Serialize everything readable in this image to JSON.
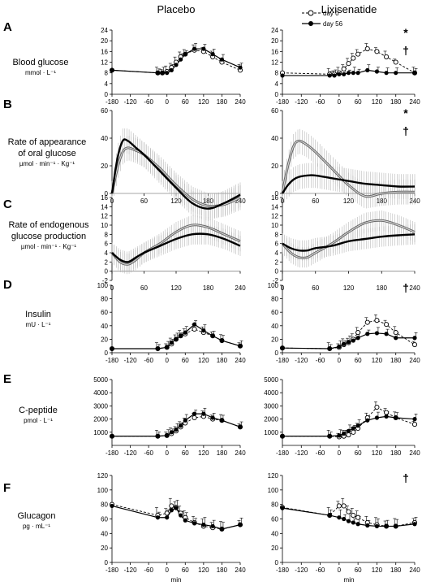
{
  "columns": [
    "Placebo",
    "Lixisenatide"
  ],
  "x_axis_label": "min",
  "legend": {
    "day0": "day 0",
    "day56": "day 56"
  },
  "colors": {
    "day0": "#000000",
    "day56": "#000000",
    "band": "#aaaaaa",
    "band_line": "#999999"
  },
  "rows": [
    {
      "letter": "A",
      "label": [
        "Blood glucose"
      ],
      "unit": "mmol · L⁻¹",
      "sig": [
        "*",
        "†"
      ]
    },
    {
      "letter": "B",
      "label": [
        "Rate of appearance",
        "of oral glucose"
      ],
      "unit": "µmol · min⁻¹ · Kg⁻¹",
      "sig": [
        "*",
        "†"
      ]
    },
    {
      "letter": "C",
      "label": [
        "Rate of endogenous",
        "glucose production"
      ],
      "unit": "µmol · min⁻¹ · Kg⁻¹",
      "sig": []
    },
    {
      "letter": "D",
      "label": [
        "Insulin"
      ],
      "unit": "mU · L⁻¹",
      "sig": [
        "†"
      ]
    },
    {
      "letter": "E",
      "label": [
        "C-peptide"
      ],
      "unit": "pmol · L⁻¹",
      "sig": []
    },
    {
      "letter": "F",
      "label": [
        "Glucagon"
      ],
      "unit": "pg · mL⁻¹",
      "sig": [
        "†"
      ]
    }
  ],
  "chart_data": [
    {
      "type": "line",
      "row": "A",
      "column": "Placebo",
      "ylim": [
        0,
        24
      ],
      "yticks": [
        0,
        4,
        8,
        12,
        16,
        20,
        24
      ],
      "xlim": [
        -180,
        240
      ],
      "xticks": [
        -180,
        -120,
        -60,
        0,
        60,
        120,
        180,
        240
      ],
      "series": [
        {
          "name": "day 0",
          "x": [
            -180,
            -30,
            -15,
            0,
            15,
            30,
            45,
            60,
            90,
            120,
            150,
            180,
            240
          ],
          "y": [
            9,
            8,
            8,
            8.5,
            10,
            12,
            14,
            15,
            16.5,
            16,
            14,
            12,
            9
          ]
        },
        {
          "name": "day 56",
          "x": [
            -180,
            -30,
            -15,
            0,
            15,
            30,
            45,
            60,
            90,
            120,
            150,
            180,
            240
          ],
          "y": [
            9,
            8,
            8,
            8,
            9,
            11,
            13,
            15,
            17,
            17,
            15,
            13,
            10
          ]
        }
      ]
    },
    {
      "type": "line",
      "row": "A",
      "column": "Lixisenatide",
      "ylim": [
        0,
        24
      ],
      "yticks": [
        0,
        4,
        8,
        12,
        16,
        20,
        24
      ],
      "xlim": [
        -180,
        240
      ],
      "xticks": [
        -180,
        -120,
        -60,
        0,
        60,
        120,
        180,
        240
      ],
      "series": [
        {
          "name": "day 0",
          "x": [
            -180,
            -30,
            -15,
            0,
            15,
            30,
            45,
            60,
            90,
            120,
            150,
            180,
            240
          ],
          "y": [
            8,
            7.5,
            7.5,
            8,
            9.5,
            11.5,
            13.5,
            15,
            17,
            16,
            14,
            12,
            8
          ]
        },
        {
          "name": "day 56",
          "x": [
            -180,
            -30,
            -15,
            0,
            15,
            30,
            45,
            60,
            90,
            120,
            150,
            180,
            240
          ],
          "y": [
            7,
            7,
            7,
            7.5,
            7.5,
            8,
            8,
            8,
            9,
            8.5,
            8,
            8,
            8
          ]
        }
      ]
    },
    {
      "type": "area",
      "row": "B",
      "column": "Placebo",
      "ylim": [
        0,
        60
      ],
      "yticks": [
        0,
        20,
        40,
        60
      ],
      "xlim": [
        0,
        240
      ],
      "xticks": [
        0,
        60,
        120,
        180,
        240
      ],
      "series": [
        {
          "name": "day 0",
          "x": [
            0,
            10,
            20,
            30,
            45,
            60,
            90,
            120,
            150,
            180,
            210,
            240
          ],
          "y": [
            0,
            18,
            30,
            33,
            31,
            28,
            18,
            6,
            -4,
            -9,
            -8,
            -3
          ]
        },
        {
          "name": "day 56",
          "x": [
            0,
            10,
            20,
            30,
            45,
            60,
            90,
            120,
            150,
            180,
            210,
            240
          ],
          "y": [
            0,
            25,
            38,
            38,
            33,
            28,
            16,
            4,
            -7,
            -11,
            -7,
            -1
          ]
        }
      ]
    },
    {
      "type": "area",
      "row": "B",
      "column": "Lixisenatide",
      "ylim": [
        0,
        60
      ],
      "yticks": [
        0,
        20,
        40,
        60
      ],
      "xlim": [
        0,
        240
      ],
      "xticks": [
        0,
        60,
        120,
        180,
        240
      ],
      "series": [
        {
          "name": "day 0",
          "x": [
            0,
            10,
            20,
            30,
            45,
            60,
            90,
            120,
            150,
            180,
            210,
            240
          ],
          "y": [
            0,
            20,
            34,
            38,
            35,
            30,
            18,
            6,
            -2,
            0,
            1,
            1
          ]
        },
        {
          "name": "day 56",
          "x": [
            0,
            10,
            20,
            30,
            45,
            60,
            90,
            120,
            150,
            180,
            210,
            240
          ],
          "y": [
            0,
            6,
            10,
            12,
            13,
            13,
            11,
            9,
            7,
            6,
            5,
            5
          ]
        }
      ]
    },
    {
      "type": "area",
      "row": "C",
      "column": "Placebo",
      "ylim": [
        -2,
        16
      ],
      "yticks": [
        -2,
        0,
        2,
        4,
        6,
        8,
        10,
        12,
        14,
        16
      ],
      "xlim": [
        0,
        240
      ],
      "xticks": [
        0,
        60,
        120,
        180,
        240
      ],
      "series": [
        {
          "name": "day 0",
          "x": [
            0,
            15,
            30,
            45,
            60,
            90,
            120,
            150,
            180,
            210,
            240
          ],
          "y": [
            4,
            2,
            1.5,
            2.5,
            4,
            6,
            8.5,
            10,
            9.5,
            8,
            6.5
          ]
        },
        {
          "name": "day 56",
          "x": [
            0,
            15,
            30,
            45,
            60,
            90,
            120,
            150,
            180,
            210,
            240
          ],
          "y": [
            4,
            2.5,
            2,
            3,
            4,
            5.5,
            7,
            8,
            8,
            7,
            5.5
          ]
        }
      ]
    },
    {
      "type": "area",
      "row": "C",
      "column": "Lixisenatide",
      "ylim": [
        -2,
        16
      ],
      "yticks": [
        -2,
        0,
        2,
        4,
        6,
        8,
        10,
        12,
        14,
        16
      ],
      "xlim": [
        0,
        240
      ],
      "xticks": [
        0,
        60,
        120,
        180,
        240
      ],
      "series": [
        {
          "name": "day 0",
          "x": [
            0,
            15,
            30,
            45,
            60,
            90,
            120,
            150,
            180,
            210,
            240
          ],
          "y": [
            6,
            4,
            3,
            3,
            4,
            6,
            8.5,
            10.5,
            11,
            10,
            8.5
          ]
        },
        {
          "name": "day 56",
          "x": [
            0,
            15,
            30,
            45,
            60,
            90,
            120,
            150,
            180,
            210,
            240
          ],
          "y": [
            6,
            5,
            4.5,
            4.5,
            5,
            5.5,
            6.5,
            7,
            7.5,
            7.8,
            8
          ]
        }
      ]
    },
    {
      "type": "line",
      "row": "D",
      "column": "Placebo",
      "ylim": [
        0,
        100
      ],
      "yticks": [
        0,
        20,
        40,
        60,
        80,
        100
      ],
      "xlim": [
        -180,
        240
      ],
      "xticks": [
        -180,
        -120,
        -60,
        0,
        60,
        120,
        180,
        240
      ],
      "series": [
        {
          "name": "day 0",
          "x": [
            -180,
            -30,
            0,
            15,
            30,
            45,
            60,
            90,
            120,
            150,
            180,
            240
          ],
          "y": [
            6,
            6,
            8,
            13,
            20,
            25,
            28,
            35,
            30,
            25,
            18,
            10
          ]
        },
        {
          "name": "day 56",
          "x": [
            -180,
            -30,
            0,
            15,
            30,
            45,
            60,
            90,
            120,
            150,
            180,
            240
          ],
          "y": [
            6,
            6,
            8,
            15,
            20,
            25,
            30,
            42,
            33,
            25,
            18,
            10
          ]
        }
      ]
    },
    {
      "type": "line",
      "row": "D",
      "column": "Lixisenatide",
      "ylim": [
        0,
        100
      ],
      "yticks": [
        0,
        20,
        40,
        60,
        80,
        100
      ],
      "xlim": [
        -180,
        240
      ],
      "xticks": [
        -180,
        -120,
        -60,
        0,
        60,
        120,
        180,
        240
      ],
      "series": [
        {
          "name": "day 0",
          "x": [
            -180,
            -30,
            0,
            15,
            30,
            45,
            60,
            90,
            120,
            150,
            180,
            240
          ],
          "y": [
            7,
            6,
            8,
            12,
            15,
            20,
            30,
            45,
            48,
            42,
            30,
            12
          ]
        },
        {
          "name": "day 56",
          "x": [
            -180,
            -30,
            0,
            15,
            30,
            45,
            60,
            90,
            120,
            150,
            180,
            240
          ],
          "y": [
            7,
            6,
            9,
            13,
            16,
            18,
            22,
            28,
            29,
            28,
            22,
            22
          ]
        }
      ]
    },
    {
      "type": "line",
      "row": "E",
      "column": "Placebo",
      "ylim": [
        0,
        5000
      ],
      "yticks": [
        1000,
        2000,
        3000,
        4000,
        5000
      ],
      "xlim": [
        -180,
        240
      ],
      "xticks": [
        -180,
        -120,
        -60,
        0,
        60,
        120,
        180,
        240
      ],
      "series": [
        {
          "name": "day 0",
          "x": [
            -180,
            -30,
            0,
            15,
            30,
            45,
            60,
            90,
            120,
            150,
            180,
            240
          ],
          "y": [
            700,
            700,
            750,
            900,
            1100,
            1400,
            1700,
            2100,
            2200,
            2000,
            1900,
            1400
          ]
        },
        {
          "name": "day 56",
          "x": [
            -180,
            -30,
            0,
            15,
            30,
            45,
            60,
            90,
            120,
            150,
            180,
            240
          ],
          "y": [
            700,
            700,
            750,
            1000,
            1200,
            1500,
            1900,
            2400,
            2400,
            2100,
            1900,
            1400
          ]
        }
      ]
    },
    {
      "type": "line",
      "row": "E",
      "column": "Lixisenatide",
      "ylim": [
        0,
        5000
      ],
      "yticks": [
        1000,
        2000,
        3000,
        4000,
        5000
      ],
      "xlim": [
        -180,
        240
      ],
      "xticks": [
        -180,
        -120,
        -60,
        0,
        60,
        120,
        180,
        240
      ],
      "series": [
        {
          "name": "day 0",
          "x": [
            -180,
            -30,
            0,
            15,
            30,
            45,
            60,
            90,
            120,
            150,
            180,
            240
          ],
          "y": [
            700,
            700,
            650,
            700,
            800,
            1000,
            1300,
            2100,
            2900,
            2500,
            2100,
            1600
          ]
        },
        {
          "name": "day 56",
          "x": [
            -180,
            -30,
            0,
            15,
            30,
            45,
            60,
            90,
            120,
            150,
            180,
            240
          ],
          "y": [
            700,
            700,
            750,
            900,
            1100,
            1300,
            1500,
            1900,
            2100,
            2200,
            2100,
            2000
          ]
        }
      ]
    },
    {
      "type": "line",
      "row": "F",
      "column": "Placebo",
      "ylim": [
        0,
        120
      ],
      "yticks": [
        0,
        20,
        40,
        60,
        80,
        100,
        120
      ],
      "xlim": [
        -180,
        240
      ],
      "xticks": [
        -180,
        -120,
        -60,
        0,
        60,
        120,
        180,
        240
      ],
      "series": [
        {
          "name": "day 0",
          "x": [
            -180,
            -30,
            0,
            15,
            30,
            45,
            60,
            90,
            120,
            150,
            180,
            240
          ],
          "y": [
            80,
            65,
            68,
            78,
            76,
            68,
            62,
            55,
            50,
            48,
            46,
            52
          ]
        },
        {
          "name": "day 56",
          "x": [
            -180,
            -30,
            0,
            15,
            30,
            45,
            60,
            90,
            120,
            150,
            180,
            240
          ],
          "y": [
            78,
            62,
            62,
            72,
            75,
            65,
            58,
            54,
            52,
            50,
            46,
            52
          ]
        }
      ]
    },
    {
      "type": "line",
      "row": "F",
      "column": "Lixisenatide",
      "ylim": [
        0,
        120
      ],
      "yticks": [
        0,
        20,
        40,
        60,
        80,
        100,
        120
      ],
      "xlim": [
        -180,
        240
      ],
      "xticks": [
        -180,
        -120,
        -60,
        0,
        60,
        120,
        180,
        240
      ],
      "series": [
        {
          "name": "day 0",
          "x": [
            -180,
            -30,
            0,
            15,
            30,
            45,
            60,
            90,
            120,
            150,
            180,
            240
          ],
          "y": [
            76,
            65,
            78,
            78,
            70,
            65,
            62,
            55,
            52,
            50,
            50,
            55
          ]
        },
        {
          "name": "day 56",
          "x": [
            -180,
            -30,
            0,
            15,
            30,
            45,
            60,
            90,
            120,
            150,
            180,
            240
          ],
          "y": [
            75,
            65,
            62,
            60,
            57,
            55,
            53,
            51,
            50,
            50,
            50,
            53
          ]
        }
      ]
    }
  ]
}
